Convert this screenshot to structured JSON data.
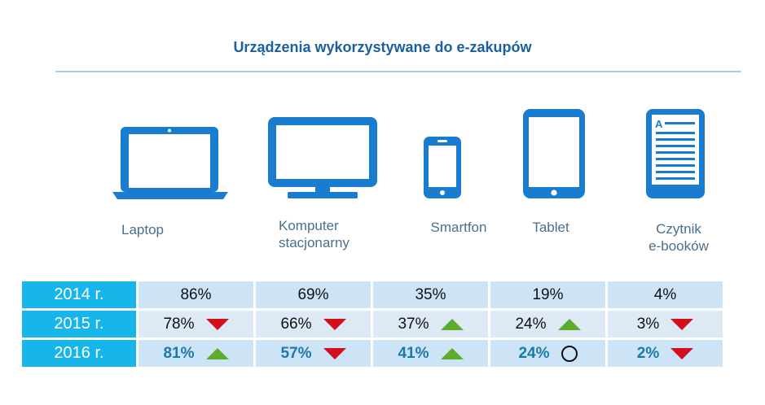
{
  "title": "Urządzenia wykorzystywane do e-zakupów",
  "devices": [
    {
      "label_line1": "Laptop",
      "label_line2": "",
      "icon": "laptop-icon"
    },
    {
      "label_line1": "Komputer",
      "label_line2": "stacjonarny",
      "icon": "desktop-monitor-icon"
    },
    {
      "label_line1": "Smartfon",
      "label_line2": "",
      "icon": "smartphone-icon"
    },
    {
      "label_line1": "Tablet",
      "label_line2": "",
      "icon": "tablet-icon"
    },
    {
      "label_line1": "Czytnik",
      "label_line2": "e-booków",
      "icon": "ebook-reader-icon"
    }
  ],
  "colors": {
    "accent": "#1a7ccf",
    "year_cell": "#17b6ea",
    "up": "#5aac2c",
    "down": "#d2101a"
  },
  "chart_data": {
    "type": "table",
    "title": "Urządzenia wykorzystywane do e-zakupów",
    "columns": [
      "Laptop",
      "Komputer stacjonarny",
      "Smartfon",
      "Tablet",
      "Czytnik e-booków"
    ],
    "rows": [
      {
        "year": "2014 r.",
        "values": [
          "86%",
          "69%",
          "35%",
          "19%",
          "4%"
        ],
        "trend": [
          "",
          "",
          "",
          "",
          ""
        ]
      },
      {
        "year": "2015 r.",
        "values": [
          "78%",
          "66%",
          "37%",
          "24%",
          "3%"
        ],
        "trend": [
          "down",
          "down",
          "up",
          "up",
          "down"
        ]
      },
      {
        "year": "2016 r.",
        "values": [
          "81%",
          "57%",
          "41%",
          "24%",
          "2%"
        ],
        "trend": [
          "up",
          "down",
          "up",
          "same",
          "down"
        ]
      }
    ]
  }
}
